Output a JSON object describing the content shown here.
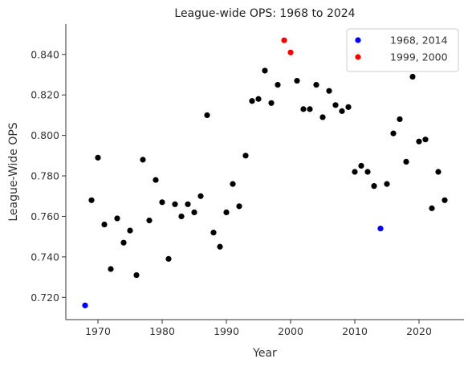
{
  "chart_data": {
    "type": "scatter",
    "title": "League-wide OPS:  1968 to 2024",
    "xlabel": "Year",
    "ylabel": "League-Wide OPS",
    "xlim": [
      1965,
      2027
    ],
    "ylim": [
      0.709,
      0.855
    ],
    "xticks": [
      1970,
      1980,
      1990,
      2000,
      2010,
      2020
    ],
    "yticks": [
      0.72,
      0.74,
      0.76,
      0.78,
      0.8,
      0.82,
      0.84
    ],
    "ytick_labels": [
      "0.720",
      "0.740",
      "0.760",
      "0.780",
      "0.800",
      "0.820",
      "0.840"
    ],
    "grid": false,
    "legend_position": "top-right",
    "series": [
      {
        "color": "#000000",
        "points": [
          [
            1969,
            0.768
          ],
          [
            1970,
            0.789
          ],
          [
            1971,
            0.756
          ],
          [
            1972,
            0.734
          ],
          [
            1973,
            0.759
          ],
          [
            1974,
            0.747
          ],
          [
            1975,
            0.753
          ],
          [
            1976,
            0.731
          ],
          [
            1977,
            0.788
          ],
          [
            1978,
            0.758
          ],
          [
            1979,
            0.778
          ],
          [
            1980,
            0.767
          ],
          [
            1981,
            0.739
          ],
          [
            1982,
            0.766
          ],
          [
            1983,
            0.76
          ],
          [
            1984,
            0.766
          ],
          [
            1985,
            0.762
          ],
          [
            1986,
            0.77
          ],
          [
            1987,
            0.81
          ],
          [
            1988,
            0.752
          ],
          [
            1989,
            0.745
          ],
          [
            1990,
            0.762
          ],
          [
            1991,
            0.776
          ],
          [
            1992,
            0.765
          ],
          [
            1993,
            0.79
          ],
          [
            1994,
            0.817
          ],
          [
            1995,
            0.818
          ],
          [
            1996,
            0.832
          ],
          [
            1997,
            0.816
          ],
          [
            1998,
            0.825
          ],
          [
            2001,
            0.827
          ],
          [
            2002,
            0.813
          ],
          [
            2003,
            0.813
          ],
          [
            2004,
            0.825
          ],
          [
            2005,
            0.809
          ],
          [
            2006,
            0.822
          ],
          [
            2007,
            0.815
          ],
          [
            2008,
            0.812
          ],
          [
            2009,
            0.814
          ],
          [
            2010,
            0.782
          ],
          [
            2011,
            0.785
          ],
          [
            2012,
            0.782
          ],
          [
            2013,
            0.775
          ],
          [
            2015,
            0.776
          ],
          [
            2016,
            0.801
          ],
          [
            2017,
            0.808
          ],
          [
            2018,
            0.787
          ],
          [
            2019,
            0.829
          ],
          [
            2020,
            0.797
          ],
          [
            2021,
            0.798
          ],
          [
            2022,
            0.764
          ],
          [
            2023,
            0.782
          ],
          [
            2024,
            0.768
          ]
        ]
      },
      {
        "name": "1968, 2014",
        "color": "#0000ff",
        "points": [
          [
            1968,
            0.716
          ],
          [
            2014,
            0.754
          ]
        ]
      },
      {
        "name": "1999, 2000",
        "color": "#ff0000",
        "points": [
          [
            1999,
            0.847
          ],
          [
            2000,
            0.841
          ]
        ]
      }
    ]
  }
}
